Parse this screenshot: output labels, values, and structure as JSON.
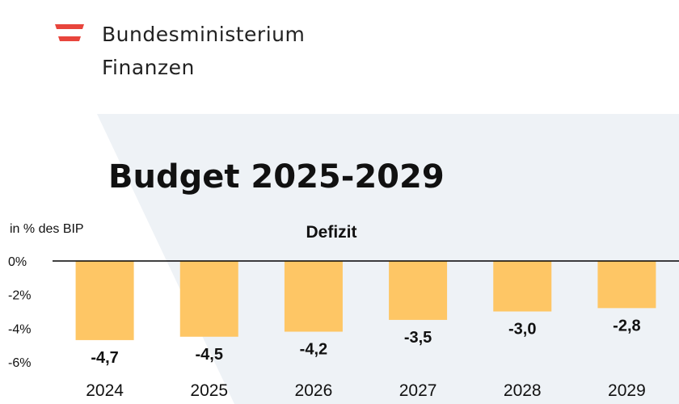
{
  "header": {
    "ministry_line1": "Bundesministerium",
    "ministry_line2": "Finanzen"
  },
  "page_title": "Budget 2025-2029",
  "colors": {
    "bar": "#fec665",
    "panel": "#eef2f6",
    "flag_red": "#e8453c"
  },
  "chart_data": {
    "type": "bar",
    "title": "Defizit",
    "ylabel": "in % des BIP",
    "categories": [
      "2024",
      "2025",
      "2026",
      "2027",
      "2028",
      "2029"
    ],
    "values": [
      -4.7,
      -4.5,
      -4.2,
      -3.5,
      -3.0,
      -2.8
    ],
    "value_labels": [
      "-4,7",
      "-4,5",
      "-4,2",
      "-3,5",
      "-3,0",
      "-2,8"
    ],
    "yticks": [
      0,
      -2,
      -4,
      -6
    ],
    "ytick_labels": [
      "0%",
      "-2%",
      "-4%",
      "-6%"
    ],
    "ylim": [
      -6,
      0
    ],
    "grid": false,
    "legend": "none"
  }
}
